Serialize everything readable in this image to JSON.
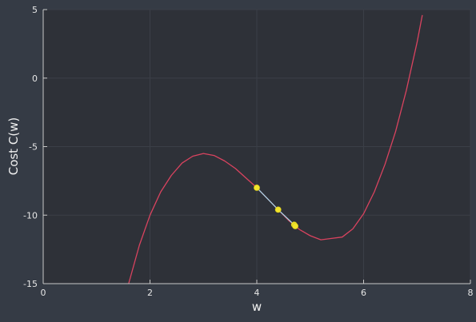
{
  "chart_data": {
    "type": "line",
    "xlabel": "w",
    "ylabel": "Cost C(w)",
    "xlim": [
      0,
      8
    ],
    "ylim": [
      -15,
      5
    ],
    "xticks": [
      "0",
      "2",
      "4",
      "6",
      "8"
    ],
    "yticks": [
      "5",
      "0",
      "-5",
      "-10",
      "-15"
    ],
    "xtick_values": [
      0,
      2,
      4,
      6,
      8
    ],
    "ytick_values": [
      5,
      0,
      -5,
      -10,
      -15
    ],
    "grid": true,
    "legend": "none",
    "colors": {
      "background": "#353b45",
      "plot_area": "#2e3138",
      "curve": "#d9435f",
      "steps": "#a8d8ea",
      "points": "#f2e42b",
      "axis": "#c8c8c8",
      "grid": "#3b3f47"
    },
    "series": [
      {
        "role": "cost-curve",
        "x": [
          1.6,
          1.8,
          2.0,
          2.2,
          2.4,
          2.6,
          2.8,
          3.0,
          3.2,
          3.4,
          3.6,
          3.8,
          4.0,
          4.2,
          4.4,
          4.6,
          4.8,
          5.0,
          5.2,
          5.4,
          5.6,
          5.8,
          6.0,
          6.2,
          6.4,
          6.6,
          6.8,
          7.0,
          7.1
        ],
        "y": [
          -15.0,
          -12.2,
          -10.0,
          -8.3,
          -7.1,
          -6.2,
          -5.7,
          -5.5,
          -5.65,
          -6.05,
          -6.6,
          -7.3,
          -8.0,
          -8.8,
          -9.6,
          -10.4,
          -11.05,
          -11.5,
          -11.8,
          -11.7,
          -11.6,
          -11.0,
          -9.9,
          -8.3,
          -6.3,
          -3.9,
          -0.9,
          2.6,
          4.6
        ]
      },
      {
        "role": "descent-steps",
        "x": [
          4.0,
          4.4,
          4.7,
          4.72
        ],
        "y": [
          -8.0,
          -9.6,
          -10.7,
          -10.8
        ]
      }
    ]
  }
}
